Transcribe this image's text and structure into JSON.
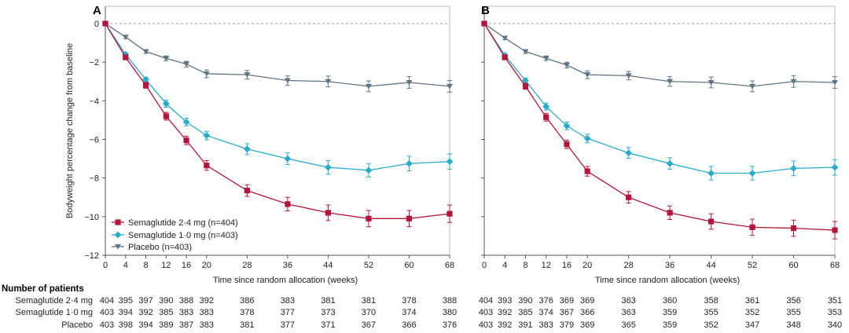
{
  "chart_data": [
    {
      "panel": "A",
      "type": "line",
      "xlabel": "Time since random allocation (weeks)",
      "ylabel": "Bodyweight percentage change from baseline",
      "xlim": [
        0,
        68
      ],
      "ylim": [
        -12,
        0
      ],
      "xticks": [
        "0",
        "4",
        "8",
        "12",
        "16",
        "20",
        "28",
        "36",
        "44",
        "52",
        "60",
        "68"
      ],
      "yticks": [
        "0",
        "−2",
        "−4",
        "−6",
        "−8",
        "−10",
        "−12"
      ],
      "x": [
        0,
        4,
        8,
        12,
        16,
        20,
        28,
        36,
        44,
        52,
        60,
        68
      ],
      "series": [
        {
          "name": "Semaglutide 2·4 mg (n=404)",
          "color": "#b3153d",
          "marker": "square",
          "values": [
            0,
            -1.75,
            -3.2,
            -4.8,
            -6.05,
            -7.35,
            -8.65,
            -9.35,
            -9.8,
            -10.1,
            -10.1,
            -9.85
          ],
          "err": [
            0,
            0.1,
            0.15,
            0.2,
            0.22,
            0.25,
            0.3,
            0.35,
            0.4,
            0.42,
            0.42,
            0.45
          ]
        },
        {
          "name": "Semaglutide 1·0 mg (n=403)",
          "color": "#2aabc9",
          "marker": "diamond",
          "values": [
            0,
            -1.6,
            -2.9,
            -4.15,
            -5.1,
            -5.8,
            -6.5,
            -7.0,
            -7.45,
            -7.6,
            -7.25,
            -7.15
          ],
          "err": [
            0,
            0.1,
            0.12,
            0.18,
            0.2,
            0.22,
            0.28,
            0.3,
            0.35,
            0.35,
            0.38,
            0.4
          ]
        },
        {
          "name": "Placebo (n=403)",
          "color": "#5f7482",
          "marker": "triangle",
          "values": [
            0,
            -0.7,
            -1.45,
            -1.8,
            -2.1,
            -2.6,
            -2.65,
            -2.95,
            -3.0,
            -3.25,
            -3.05,
            -3.25
          ],
          "err": [
            0,
            0.08,
            0.1,
            0.12,
            0.15,
            0.2,
            0.22,
            0.25,
            0.28,
            0.28,
            0.3,
            0.3
          ]
        }
      ]
    },
    {
      "panel": "B",
      "type": "line",
      "xlabel": "Time since random allocation (weeks)",
      "ylabel": "",
      "xlim": [
        0,
        68
      ],
      "ylim": [
        -12,
        0
      ],
      "xticks": [
        "0",
        "4",
        "8",
        "12",
        "16",
        "20",
        "28",
        "36",
        "44",
        "52",
        "60",
        "68"
      ],
      "yticks": [],
      "x": [
        0,
        4,
        8,
        12,
        16,
        20,
        28,
        36,
        44,
        52,
        60,
        68
      ],
      "series": [
        {
          "name": "Semaglutide 2·4 mg",
          "color": "#b3153d",
          "marker": "square",
          "values": [
            0,
            -1.75,
            -3.25,
            -4.85,
            -6.25,
            -7.65,
            -9.0,
            -9.8,
            -10.25,
            -10.55,
            -10.6,
            -10.7
          ],
          "err": [
            0,
            0.1,
            0.15,
            0.2,
            0.22,
            0.25,
            0.3,
            0.35,
            0.4,
            0.42,
            0.42,
            0.45
          ]
        },
        {
          "name": "Semaglutide 1·0 mg",
          "color": "#2aabc9",
          "marker": "diamond",
          "values": [
            0,
            -1.65,
            -2.95,
            -4.3,
            -5.3,
            -5.95,
            -6.7,
            -7.25,
            -7.75,
            -7.75,
            -7.5,
            -7.45
          ],
          "err": [
            0,
            0.1,
            0.12,
            0.18,
            0.2,
            0.22,
            0.28,
            0.3,
            0.35,
            0.35,
            0.38,
            0.4
          ]
        },
        {
          "name": "Placebo",
          "color": "#5f7482",
          "marker": "triangle",
          "values": [
            0,
            -0.75,
            -1.45,
            -1.8,
            -2.15,
            -2.65,
            -2.7,
            -3.0,
            -3.05,
            -3.25,
            -3.0,
            -3.05
          ],
          "err": [
            0,
            0.08,
            0.1,
            0.12,
            0.15,
            0.2,
            0.22,
            0.25,
            0.28,
            0.28,
            0.3,
            0.3
          ]
        }
      ]
    }
  ],
  "patients": {
    "title": "Number of patients",
    "rows": [
      {
        "label": "Semaglutide 2·4 mg",
        "A": [
          "404",
          "395",
          "397",
          "390",
          "388",
          "392",
          "386",
          "383",
          "381",
          "381",
          "378",
          "388"
        ],
        "B": [
          "404",
          "393",
          "390",
          "376",
          "369",
          "369",
          "363",
          "360",
          "358",
          "361",
          "356",
          "351"
        ]
      },
      {
        "label": "Semaglutide 1·0 mg",
        "A": [
          "403",
          "394",
          "392",
          "385",
          "383",
          "383",
          "378",
          "377",
          "373",
          "370",
          "374",
          "380"
        ],
        "B": [
          "403",
          "392",
          "385",
          "374",
          "367",
          "366",
          "363",
          "359",
          "355",
          "352",
          "355",
          "353"
        ]
      },
      {
        "label": "Placebo",
        "A": [
          "403",
          "398",
          "394",
          "389",
          "387",
          "383",
          "381",
          "377",
          "371",
          "367",
          "366",
          "376"
        ],
        "B": [
          "403",
          "392",
          "391",
          "383",
          "379",
          "369",
          "365",
          "359",
          "352",
          "347",
          "348",
          "340"
        ]
      }
    ]
  }
}
